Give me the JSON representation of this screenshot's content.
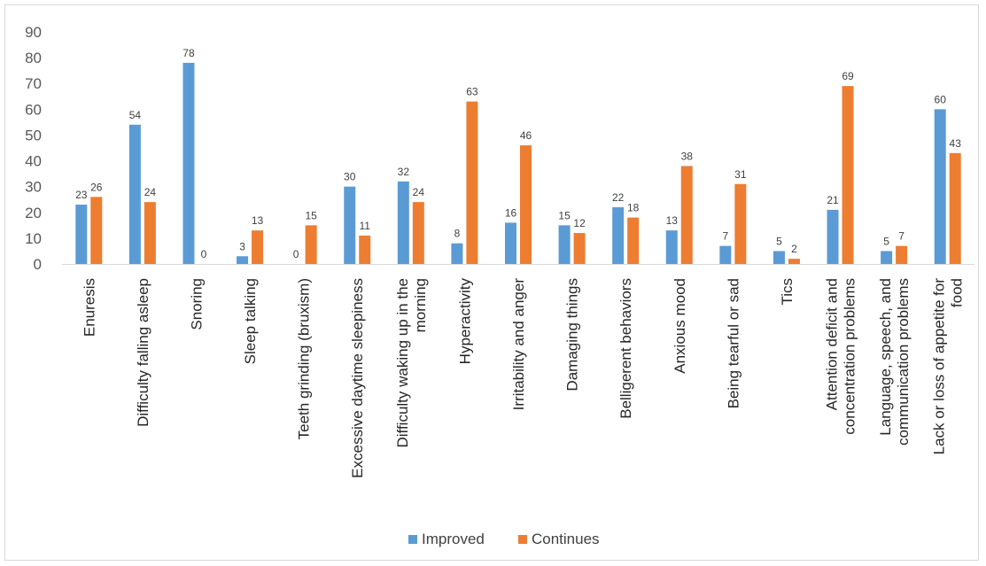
{
  "chart_data": {
    "type": "bar",
    "title": "",
    "xlabel": "",
    "ylabel": "",
    "ylim": [
      0,
      90
    ],
    "yticks": [
      0,
      10,
      20,
      30,
      40,
      50,
      60,
      70,
      80,
      90
    ],
    "grid": false,
    "legend_position": "bottom",
    "categories": [
      [
        "Enuresis"
      ],
      [
        "Difficulty falling asleep"
      ],
      [
        "Snoring"
      ],
      [
        "Sleep talking"
      ],
      [
        "Teeth grinding (bruxism)"
      ],
      [
        "Excessive daytime sleepiness"
      ],
      [
        "Difficulty waking up in the",
        "morning"
      ],
      [
        "Hyperactivity"
      ],
      [
        "Irritability and anger"
      ],
      [
        "Damaging things"
      ],
      [
        "Belligerent behaviors"
      ],
      [
        "Anxious mood"
      ],
      [
        "Being tearful or sad"
      ],
      [
        "Tics"
      ],
      [
        "Attention deficit and",
        "concentration problems"
      ],
      [
        "Language, speech, and",
        "communication problems"
      ],
      [
        "Lack or loss of appetite for",
        "food"
      ]
    ],
    "series": [
      {
        "name": "Improved",
        "color": "#5b9bd5",
        "values": [
          23,
          54,
          78,
          3,
          0,
          30,
          32,
          8,
          16,
          15,
          22,
          13,
          7,
          5,
          21,
          5,
          60
        ]
      },
      {
        "name": "Continues",
        "color": "#ed7d31",
        "values": [
          26,
          24,
          0,
          13,
          15,
          11,
          24,
          63,
          46,
          12,
          18,
          38,
          31,
          2,
          69,
          7,
          43
        ]
      }
    ]
  }
}
